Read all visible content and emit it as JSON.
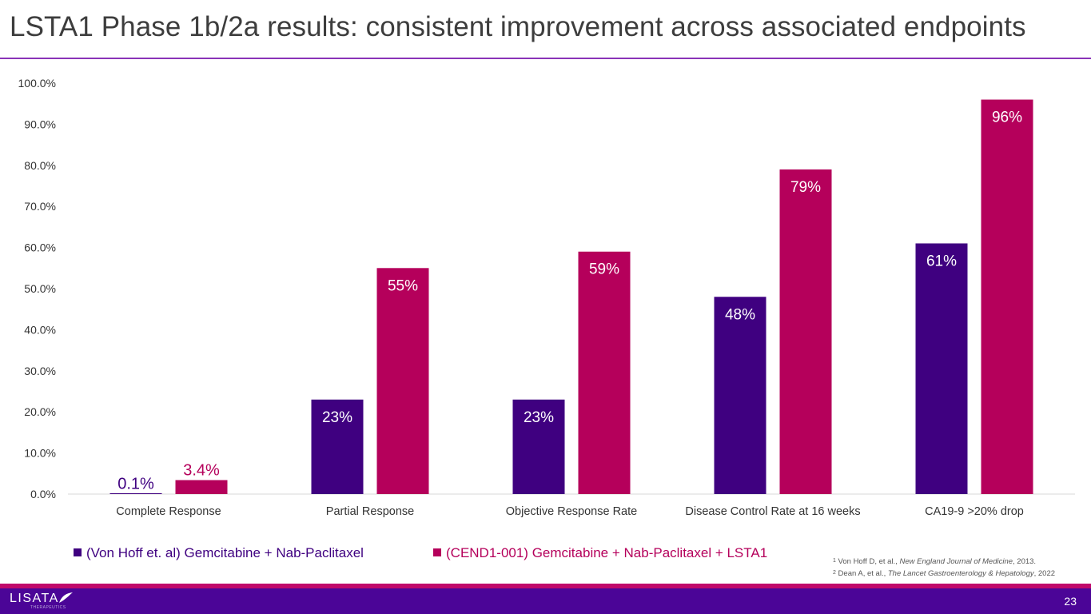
{
  "slide": {
    "title": "LSTA1 Phase 1b/2a results: consistent improvement across associated endpoints",
    "page_number": "23",
    "logo_text": "LISATA",
    "logo_subtext": "THERAPEUTICS"
  },
  "colors": {
    "series1": "#3f0080",
    "series2": "#b5005b",
    "title_rule": "#8a33b8",
    "footer_bar": "#4b0597",
    "footer_stripe": "#c0096a"
  },
  "footnotes": [
    {
      "num": "1",
      "pre": "Von Hoff D, et al., ",
      "journal": "New England Journal of Medicine",
      "post": ", 2013."
    },
    {
      "num": "2",
      "pre": "Dean A, et al., ",
      "journal": "The Lancet Gastroenterology & Hepatology",
      "post": ", 2022"
    }
  ],
  "chart_data": {
    "type": "bar",
    "title": "",
    "categories": [
      "Complete Response",
      "Partial Response",
      "Objective Response Rate",
      "Disease Control Rate at 16 weeks",
      "CA19-9 >20% drop"
    ],
    "series": [
      {
        "name": "(Von Hoff et. al) Gemcitabine + Nab-Paclitaxel",
        "values": [
          0.1,
          23,
          23,
          48,
          61
        ],
        "labels": [
          "0.1%",
          "23%",
          "23%",
          "48%",
          "61%"
        ]
      },
      {
        "name": "(CEND1-001) Gemcitabine + Nab-Paclitaxel + LSTA1",
        "values": [
          3.4,
          55,
          59,
          79,
          96
        ],
        "labels": [
          "3.4%",
          "55%",
          "59%",
          "79%",
          "96%"
        ]
      }
    ],
    "yticks": [
      "0.0%",
      "10.0%",
      "20.0%",
      "30.0%",
      "40.0%",
      "50.0%",
      "60.0%",
      "70.0%",
      "80.0%",
      "90.0%",
      "100.0%"
    ],
    "ylim": [
      0,
      100
    ],
    "xlabel": "",
    "ylabel": "",
    "grid": false,
    "legend_position": "bottom-left"
  }
}
